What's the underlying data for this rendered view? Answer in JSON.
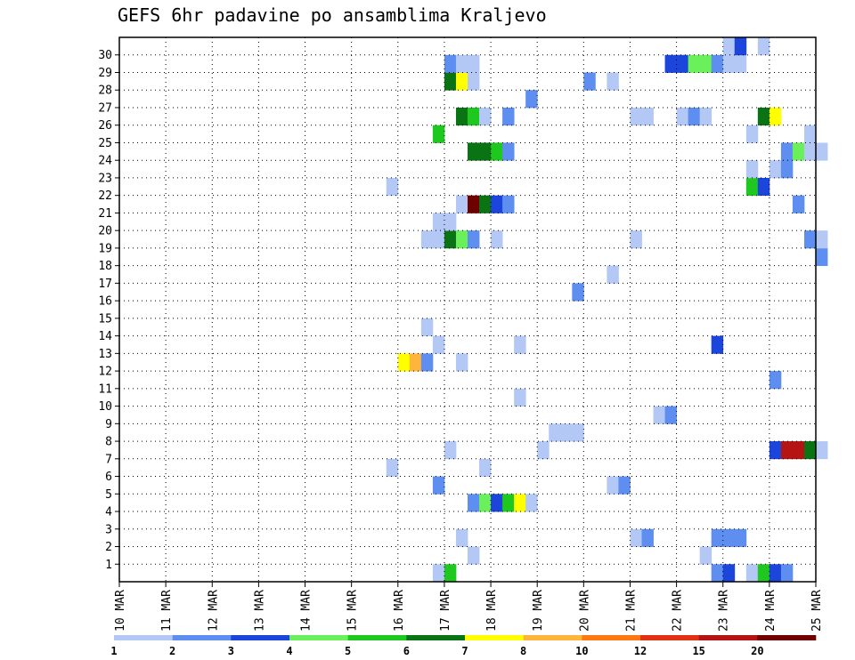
{
  "chart_data": {
    "type": "heatmap",
    "title": "GEFS 6hr padavine po ansamblima Kraljevo",
    "xlabel": "",
    "ylabel": "",
    "x_tick_labels": [
      "10 MAR",
      "11 MAR",
      "12 MAR",
      "13 MAR",
      "14 MAR",
      "15 MAR",
      "16 MAR",
      "17 MAR",
      "18 MAR",
      "19 MAR",
      "20 MAR",
      "21 MAR",
      "22 MAR",
      "23 MAR",
      "24 MAR",
      "25 MAR"
    ],
    "xlim_days": [
      0,
      15
    ],
    "y_tick_labels": [
      "1",
      "2",
      "3",
      "4",
      "5",
      "6",
      "7",
      "8",
      "9",
      "10",
      "11",
      "12",
      "13",
      "14",
      "15",
      "16",
      "17",
      "18",
      "19",
      "20",
      "21",
      "22",
      "23",
      "24",
      "25",
      "26",
      "27",
      "28",
      "29",
      "30"
    ],
    "ylim_members": [
      0,
      30
    ],
    "steps_per_day": 4,
    "grid": true,
    "colorbar": {
      "position": "bottom",
      "labels": [
        "1",
        "2",
        "3",
        "4",
        "5",
        "6",
        "7",
        "8",
        "10",
        "12",
        "15",
        "20"
      ],
      "colors": [
        "#b3c8f5",
        "#5e8ef0",
        "#1c45dc",
        "#6af05a",
        "#1ec81e",
        "#0a7314",
        "#ffff00",
        "#ffb43c",
        "#ff7814",
        "#e13214",
        "#b41414",
        "#6e0000"
      ]
    },
    "cells_legend": "each cell: [member, step index from 10 MAR 00z (6h steps), color class 1-12]",
    "cells": [
      [
        0,
        27,
        1
      ],
      [
        0,
        28,
        5
      ],
      [
        0,
        51,
        2
      ],
      [
        0,
        52,
        3
      ],
      [
        0,
        54,
        1
      ],
      [
        0,
        55,
        5
      ],
      [
        0,
        56,
        3
      ],
      [
        0,
        57,
        2
      ],
      [
        1,
        30,
        1
      ],
      [
        1,
        50,
        1
      ],
      [
        2,
        29,
        1
      ],
      [
        2,
        44,
        1
      ],
      [
        2,
        45,
        2
      ],
      [
        2,
        51,
        2
      ],
      [
        2,
        52,
        2
      ],
      [
        2,
        53,
        2
      ],
      [
        4,
        30,
        2
      ],
      [
        4,
        31,
        4
      ],
      [
        4,
        32,
        3
      ],
      [
        4,
        33,
        5
      ],
      [
        4,
        34,
        7
      ],
      [
        4,
        35,
        1
      ],
      [
        5,
        27,
        2
      ],
      [
        5,
        42,
        1
      ],
      [
        5,
        43,
        2
      ],
      [
        6,
        23,
        1
      ],
      [
        6,
        31,
        1
      ],
      [
        7,
        28,
        1
      ],
      [
        7,
        36,
        1
      ],
      [
        7,
        56,
        3
      ],
      [
        7,
        57,
        11
      ],
      [
        7,
        58,
        11
      ],
      [
        7,
        59,
        6
      ],
      [
        7,
        60,
        1
      ],
      [
        8,
        37,
        1
      ],
      [
        8,
        38,
        1
      ],
      [
        8,
        39,
        1
      ],
      [
        9,
        46,
        1
      ],
      [
        9,
        47,
        2
      ],
      [
        10,
        34,
        1
      ],
      [
        11,
        56,
        2
      ],
      [
        12,
        24,
        7
      ],
      [
        12,
        25,
        8
      ],
      [
        12,
        26,
        2
      ],
      [
        12,
        29,
        1
      ],
      [
        13,
        27,
        1
      ],
      [
        13,
        34,
        1
      ],
      [
        13,
        51,
        3
      ],
      [
        14,
        26,
        1
      ],
      [
        16,
        39,
        2
      ],
      [
        17,
        42,
        1
      ],
      [
        18,
        60,
        2
      ],
      [
        19,
        26,
        1
      ],
      [
        19,
        27,
        1
      ],
      [
        19,
        28,
        6
      ],
      [
        19,
        29,
        4
      ],
      [
        19,
        30,
        2
      ],
      [
        19,
        32,
        1
      ],
      [
        19,
        44,
        1
      ],
      [
        19,
        59,
        2
      ],
      [
        19,
        60,
        1
      ],
      [
        20,
        27,
        1
      ],
      [
        20,
        28,
        1
      ],
      [
        21,
        29,
        1
      ],
      [
        21,
        30,
        12
      ],
      [
        21,
        31,
        6
      ],
      [
        21,
        32,
        3
      ],
      [
        21,
        33,
        2
      ],
      [
        21,
        58,
        2
      ],
      [
        22,
        23,
        1
      ],
      [
        22,
        54,
        5
      ],
      [
        22,
        55,
        3
      ],
      [
        23,
        54,
        1
      ],
      [
        23,
        56,
        1
      ],
      [
        23,
        57,
        2
      ],
      [
        24,
        30,
        6
      ],
      [
        24,
        31,
        6
      ],
      [
        24,
        32,
        5
      ],
      [
        24,
        33,
        2
      ],
      [
        24,
        57,
        2
      ],
      [
        24,
        58,
        4
      ],
      [
        24,
        59,
        1
      ],
      [
        24,
        60,
        1
      ],
      [
        25,
        27,
        5
      ],
      [
        25,
        54,
        1
      ],
      [
        25,
        59,
        1
      ],
      [
        26,
        29,
        6
      ],
      [
        26,
        30,
        5
      ],
      [
        26,
        31,
        1
      ],
      [
        26,
        33,
        2
      ],
      [
        26,
        44,
        1
      ],
      [
        26,
        45,
        1
      ],
      [
        26,
        48,
        1
      ],
      [
        26,
        49,
        2
      ],
      [
        26,
        50,
        1
      ],
      [
        26,
        55,
        6
      ],
      [
        26,
        56,
        7
      ],
      [
        27,
        35,
        2
      ],
      [
        28,
        28,
        6
      ],
      [
        28,
        29,
        7
      ],
      [
        28,
        30,
        1
      ],
      [
        28,
        40,
        2
      ],
      [
        28,
        42,
        1
      ],
      [
        29,
        28,
        2
      ],
      [
        29,
        29,
        1
      ],
      [
        29,
        30,
        1
      ],
      [
        29,
        47,
        3
      ],
      [
        29,
        48,
        3
      ],
      [
        29,
        49,
        4
      ],
      [
        29,
        50,
        4
      ],
      [
        29,
        51,
        2
      ],
      [
        29,
        52,
        1
      ],
      [
        29,
        53,
        1
      ],
      [
        30,
        52,
        1
      ],
      [
        30,
        53,
        3
      ],
      [
        30,
        55,
        1
      ]
    ]
  }
}
